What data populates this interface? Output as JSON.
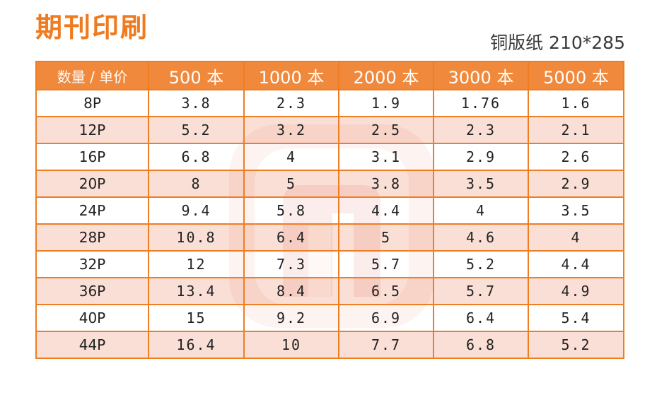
{
  "title": "期刊印刷",
  "paper_spec": "铜版纸 210*285",
  "table": {
    "headers": [
      "数量 / 单价",
      "500 本",
      "1000 本",
      "2000 本",
      "3000 本",
      "5000 本"
    ],
    "rows": [
      [
        "8P",
        "3.8",
        "2.3",
        "1.9",
        "1.76",
        "1.6"
      ],
      [
        "12P",
        "5.2",
        "3.2",
        "2.5",
        "2.3",
        "2.1"
      ],
      [
        "16P",
        "6.8",
        "4",
        "3.1",
        "2.9",
        "2.6"
      ],
      [
        "20P",
        "8",
        "5",
        "3.8",
        "3.5",
        "2.9"
      ],
      [
        "24P",
        "9.4",
        "5.8",
        "4.4",
        "4",
        "3.5"
      ],
      [
        "28P",
        "10.8",
        "6.4",
        "5",
        "4.6",
        "4"
      ],
      [
        "32P",
        "12",
        "7.3",
        "5.7",
        "5.2",
        "4.4"
      ],
      [
        "36P",
        "13.4",
        "8.4",
        "6.5",
        "5.7",
        "4.9"
      ],
      [
        "40P",
        "15",
        "9.2",
        "6.9",
        "6.4",
        "5.4"
      ],
      [
        "44P",
        "16.4",
        "10",
        "7.7",
        "6.8",
        "5.2"
      ]
    ]
  },
  "colors": {
    "accent": "#f07a1e",
    "header_bg": "#f0893c",
    "border": "#ef7d22",
    "stripe": "#f6c4b4"
  },
  "watermark_icon": "logo-watermark-icon"
}
